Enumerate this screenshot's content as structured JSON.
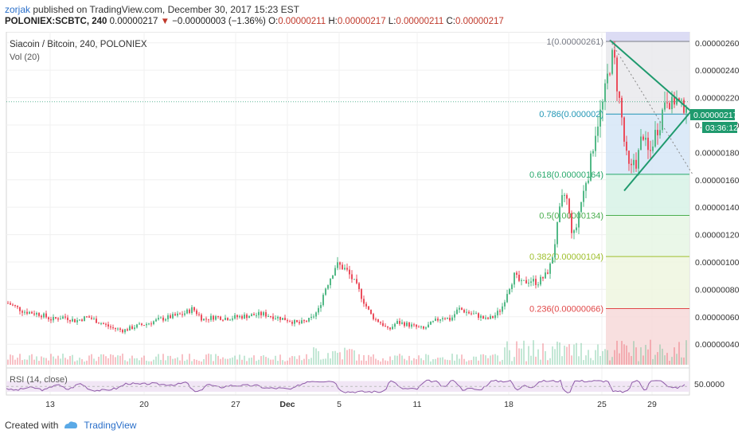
{
  "header": {
    "username": "zorjak",
    "published_text": "published on TradingView.com, December 30, 2017 15:23 EST",
    "symbol": "POLONIEX:SCBTC, 240",
    "last": "0.00000217",
    "down_arrow": "▼",
    "change": "−0.00000003 (−1.36%)",
    "o_label": "O:",
    "o_value": "0.00000211",
    "h_label": "H:",
    "h_value": "0.00000217",
    "l_label": "L:",
    "l_value": "0.00000211",
    "c_label": "C:",
    "c_value": "0.00000217"
  },
  "legend": {
    "pair": "Siacoin / Bitcoin, 240, POLONIEX",
    "volume": "Vol (20)",
    "rsi": "RSI (14, close)"
  },
  "price_axis": {
    "last_price_tag": "0.00000217",
    "countdown_tag": "03:36:12",
    "rsi_tick": "50.0000"
  },
  "footer": {
    "created_with": "Created with",
    "brand": "TradingView"
  },
  "colors": {
    "up": "#53b987",
    "down": "#eb4d5c",
    "trend": "#1f9a6e",
    "rsi": "#8e5aa8"
  },
  "chart_data": {
    "type": "candlestick",
    "y_unit": "BTC",
    "ylim": [
      2.5e-07,
      2.68e-06
    ],
    "y_ticks": [
      "0.00000260",
      "0.00000240",
      "0.00000220",
      "0.00000200",
      "0.00000180",
      "0.00000160",
      "0.00000140",
      "0.00000120",
      "0.00000100",
      "0.00000080",
      "0.00000060",
      "0.00000040"
    ],
    "x_ticks": [
      "13",
      "20",
      "27",
      "Dec",
      "5",
      "11",
      "18",
      "25",
      "29"
    ],
    "fib_levels": [
      {
        "label": "1(0.00000261)",
        "ratio": 1,
        "price": 2.61e-06,
        "color": "#787b86",
        "fill": "#e9e9ec"
      },
      {
        "label": "0.786(0.000002)",
        "ratio": 0.786,
        "price": 2.08e-06,
        "color": "#2196b5",
        "fill": "#d6e6f7"
      },
      {
        "label": "0.618(0.00000164)",
        "ratio": 0.618,
        "price": 1.64e-06,
        "color": "#26a86a",
        "fill": "#d7f2e6"
      },
      {
        "label": "0.5(0.00000134)",
        "ratio": 0.5,
        "price": 1.34e-06,
        "color": "#4caf50",
        "fill": "#e6f6e4"
      },
      {
        "label": "0.382(0.00000104)",
        "ratio": 0.382,
        "price": 1.04e-06,
        "color": "#9ebf2c",
        "fill": "#eff6df"
      },
      {
        "label": "0.236(0.00000066)",
        "ratio": 0.236,
        "price": 6.6e-07,
        "color": "#e04848",
        "fill": "#f7d9d9"
      }
    ],
    "price_path": [
      [
        0,
        7e-07
      ],
      [
        20,
        6.4e-07
      ],
      [
        40,
        6.2e-07
      ],
      [
        55,
        5.8e-07
      ],
      [
        70,
        6e-07
      ],
      [
        85,
        5.7e-07
      ],
      [
        100,
        6e-07
      ],
      [
        115,
        5.6e-07
      ],
      [
        130,
        5.2e-07
      ],
      [
        145,
        5e-07
      ],
      [
        160,
        5.3e-07
      ],
      [
        175,
        5.5e-07
      ],
      [
        190,
        5.8e-07
      ],
      [
        205,
        6e-07
      ],
      [
        220,
        6.2e-07
      ],
      [
        232,
        6.6e-07
      ],
      [
        245,
        5.8e-07
      ],
      [
        260,
        6e-07
      ],
      [
        275,
        5.9e-07
      ],
      [
        290,
        6e-07
      ],
      [
        305,
        6.1e-07
      ],
      [
        320,
        6.2e-07
      ],
      [
        335,
        6e-07
      ],
      [
        350,
        5.8e-07
      ],
      [
        365,
        5.5e-07
      ],
      [
        380,
        5.8e-07
      ],
      [
        390,
        6.5e-07
      ],
      [
        398,
        8e-07
      ],
      [
        406,
        9e-07
      ],
      [
        412,
        9.8e-07
      ],
      [
        418,
        9.7e-07
      ],
      [
        425,
        9.4e-07
      ],
      [
        432,
        8.8e-07
      ],
      [
        440,
        8e-07
      ],
      [
        448,
        7e-07
      ],
      [
        455,
        6.2e-07
      ],
      [
        462,
        5.8e-07
      ],
      [
        470,
        5.5e-07
      ],
      [
        478,
        5e-07
      ],
      [
        488,
        5.6e-07
      ],
      [
        498,
        5.5e-07
      ],
      [
        510,
        5.3e-07
      ],
      [
        522,
        5.1e-07
      ],
      [
        534,
        5.6e-07
      ],
      [
        546,
        6e-07
      ],
      [
        556,
        5.8e-07
      ],
      [
        566,
        6.6e-07
      ],
      [
        578,
        6.3e-07
      ],
      [
        590,
        6.1e-07
      ],
      [
        600,
        5.8e-07
      ],
      [
        610,
        6e-07
      ],
      [
        620,
        6.6e-07
      ],
      [
        628,
        8e-07
      ],
      [
        636,
        9e-07
      ],
      [
        645,
        8.4e-07
      ],
      [
        655,
        8.7e-07
      ],
      [
        665,
        8.5e-07
      ],
      [
        675,
        9e-07
      ],
      [
        682,
        9.8e-07
      ],
      [
        688,
        1.18e-06
      ],
      [
        694,
        1.4e-06
      ],
      [
        698,
        1.5e-06
      ],
      [
        702,
        1.45e-06
      ],
      [
        706,
        1.3e-06
      ],
      [
        710,
        1.18e-06
      ],
      [
        714,
        1.26e-06
      ],
      [
        718,
        1.4e-06
      ],
      [
        722,
        1.48e-06
      ],
      [
        726,
        1.6e-06
      ],
      [
        730,
        1.66e-06
      ],
      [
        734,
        1.82e-06
      ],
      [
        738,
        1.96e-06
      ],
      [
        742,
        2.05e-06
      ],
      [
        746,
        2.12e-06
      ],
      [
        750,
        2.24e-06
      ],
      [
        754,
        2.38e-06
      ],
      [
        758,
        2.5e-06
      ],
      [
        762,
        2.45e-06
      ],
      [
        766,
        2.25e-06
      ],
      [
        770,
        2.1e-06
      ],
      [
        774,
        1.88e-06
      ],
      [
        778,
        1.72e-06
      ],
      [
        782,
        1.65e-06
      ],
      [
        786,
        1.75e-06
      ],
      [
        790,
        1.72e-06
      ],
      [
        794,
        1.86e-06
      ],
      [
        798,
        1.94e-06
      ],
      [
        802,
        1.82e-06
      ],
      [
        806,
        1.78e-06
      ],
      [
        810,
        1.88e-06
      ],
      [
        814,
        1.96e-06
      ],
      [
        818,
        2e-06
      ],
      [
        822,
        2.1e-06
      ],
      [
        826,
        2.22e-06
      ],
      [
        830,
        2.2e-06
      ],
      [
        834,
        2.14e-06
      ],
      [
        838,
        2.2e-06
      ],
      [
        842,
        2.16e-06
      ],
      [
        846,
        2.12e-06
      ],
      [
        850,
        2.16e-06
      ],
      [
        854,
        2.17e-06
      ]
    ],
    "triangle": {
      "upper": [
        [
          758,
          2.62e-06
        ],
        [
          860,
          2.1e-06
        ]
      ],
      "lower": [
        [
          776,
          1.52e-06
        ],
        [
          860,
          2.1e-06
        ]
      ]
    },
    "dotted_diagonal": [
      [
        758,
        2.62e-06
      ],
      [
        862,
        1.64e-06
      ]
    ],
    "last_price": 2.17e-06,
    "rsi_level": 50
  }
}
